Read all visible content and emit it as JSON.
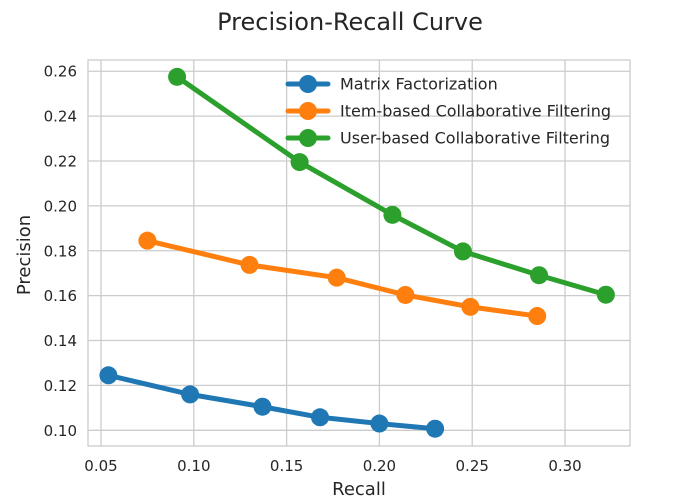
{
  "chart_data": {
    "type": "line",
    "title": "Precision-Recall Curve",
    "xlabel": "Recall",
    "ylabel": "Precision",
    "xlim": [
      0.043,
      0.335
    ],
    "ylim": [
      0.093,
      0.265
    ],
    "xticks": [
      0.05,
      0.1,
      0.15,
      0.2,
      0.25,
      0.3
    ],
    "xtick_labels": [
      "0.05",
      "0.10",
      "0.15",
      "0.20",
      "0.25",
      "0.30"
    ],
    "yticks": [
      0.1,
      0.12,
      0.14,
      0.16,
      0.18,
      0.2,
      0.22,
      0.24,
      0.26
    ],
    "ytick_labels": [
      "0.10",
      "0.12",
      "0.14",
      "0.16",
      "0.18",
      "0.20",
      "0.22",
      "0.24",
      "0.26"
    ],
    "grid": true,
    "legend_position": "top-right",
    "series": [
      {
        "name": "Matrix Factorization",
        "color": "#1f77b4",
        "x": [
          0.054,
          0.098,
          0.137,
          0.168,
          0.2,
          0.23
        ],
        "y": [
          0.1245,
          0.116,
          0.1105,
          0.1058,
          0.103,
          0.1007
        ]
      },
      {
        "name": "Item-based Collaborative Filtering",
        "color": "#ff7f0e",
        "x": [
          0.075,
          0.13,
          0.177,
          0.214,
          0.249,
          0.285
        ],
        "y": [
          0.1845,
          0.1737,
          0.168,
          0.1603,
          0.155,
          0.1509
        ]
      },
      {
        "name": "User-based Collaborative Filtering",
        "color": "#2ca02c",
        "x": [
          0.091,
          0.157,
          0.207,
          0.245,
          0.286,
          0.322
        ],
        "y": [
          0.2575,
          0.2195,
          0.196,
          0.1797,
          0.1691,
          0.1604
        ]
      }
    ]
  }
}
